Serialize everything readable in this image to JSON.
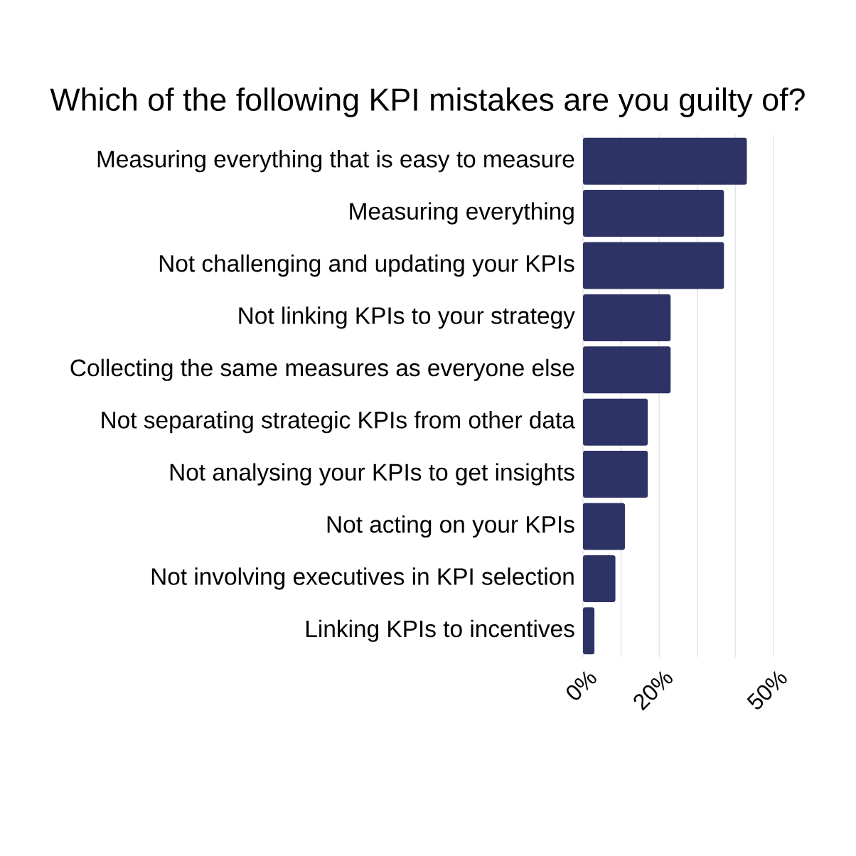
{
  "chart_data": {
    "type": "bar",
    "orientation": "horizontal",
    "title": "Which of the following KPI mistakes are you guilty of?",
    "categories": [
      "Measuring everything that is easy to measure",
      "Measuring everything",
      "Not challenging and updating your KPIs",
      "Not linking KPIs to your strategy",
      "Collecting the same measures as everyone else",
      "Not separating strategic KPIs from other data",
      "Not analysing your KPIs to get insights",
      "Not acting on your KPIs",
      "Not involving executives in KPI selection",
      "Linking KPIs to incentives"
    ],
    "values": [
      43,
      37,
      37,
      23,
      23,
      17,
      17,
      11,
      8.5,
      3
    ],
    "color": "#2e3366",
    "xlim": [
      0,
      50
    ],
    "xticks": [
      {
        "value": 0,
        "label": "0%"
      },
      {
        "value": 10,
        "label": null
      },
      {
        "value": 20,
        "label": "20%"
      },
      {
        "value": 30,
        "label": null
      },
      {
        "value": 40,
        "label": null
      },
      {
        "value": 50,
        "label": "50%"
      }
    ],
    "grid": "x"
  }
}
